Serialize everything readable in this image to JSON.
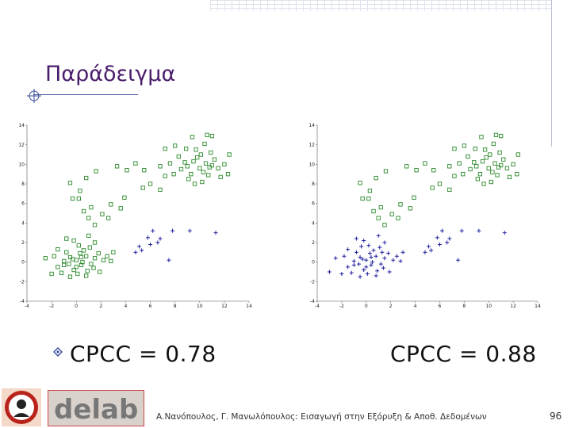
{
  "slide": {
    "title": "Παράδειγμα",
    "footer": "Α.Νανόπουλος, Γ. Μανωλόπουλος: Εισαγωγή στην Εξόρυξη & Αποθ. Δεδομένων",
    "page_number": "96",
    "logo_text": "delab"
  },
  "results": [
    {
      "label": "CPCC = 0.78"
    },
    {
      "label": "CPCC = 0.88"
    }
  ],
  "chart_data": [
    {
      "type": "scatter",
      "title": "",
      "xlabel": "",
      "ylabel": "",
      "xlim": [
        -4,
        14
      ],
      "ylim": [
        -4,
        14
      ],
      "xticks": [
        "-4",
        "-2",
        "0",
        "2",
        "4",
        "6",
        "8",
        "10",
        "12",
        "14"
      ],
      "yticks": [
        "-4",
        "-2",
        "0",
        "2",
        "4",
        "6",
        "8",
        "10",
        "12",
        "14"
      ],
      "grid": false,
      "series": [
        {
          "marker": "square",
          "color": "#2a8a2a",
          "points": [
            [
              0.0,
              0.2
            ],
            [
              -0.5,
              0.5
            ],
            [
              0.4,
              -0.3
            ],
            [
              0.8,
              0.6
            ],
            [
              -1.0,
              0.1
            ],
            [
              1.2,
              -0.2
            ],
            [
              0.3,
              0.9
            ],
            [
              -0.2,
              -0.8
            ],
            [
              0.6,
              1.2
            ],
            [
              -1.5,
              -0.5
            ],
            [
              1.5,
              0.4
            ],
            [
              0.1,
              -1.2
            ],
            [
              -0.8,
              1.0
            ],
            [
              0.9,
              -0.9
            ],
            [
              1.8,
              0.9
            ],
            [
              -1.8,
              0.6
            ],
            [
              0.5,
              0.0
            ],
            [
              -0.3,
              0.3
            ],
            [
              1.1,
              1.5
            ],
            [
              -1.2,
              -1.1
            ],
            [
              2.2,
              0.2
            ],
            [
              0.2,
              1.7
            ],
            [
              -0.6,
              -0.2
            ],
            [
              1.4,
              -0.6
            ],
            [
              -1.5,
              1.3
            ],
            [
              1.5,
              2.0
            ],
            [
              2.5,
              0.6
            ],
            [
              -0.2,
              2.2
            ],
            [
              -2.5,
              0.4
            ],
            [
              3.0,
              1.0
            ],
            [
              -0.5,
              -1.5
            ],
            [
              -2.0,
              -1.2
            ],
            [
              0.8,
              -1.4
            ],
            [
              1.9,
              -1.0
            ],
            [
              -1.0,
              -0.3
            ],
            [
              0.4,
              0.5
            ],
            [
              2.8,
              0.1
            ],
            [
              1.0,
              2.7
            ],
            [
              -0.8,
              2.4
            ],
            [
              0.0,
              -0.5
            ]
          ]
        },
        {
          "marker": "square",
          "color": "#2a8a2a",
          "points": [
            [
              9.0,
              9.8
            ],
            [
              9.5,
              10.3
            ],
            [
              10.0,
              9.6
            ],
            [
              10.5,
              10.1
            ],
            [
              11.0,
              9.9
            ],
            [
              9.8,
              10.7
            ],
            [
              10.3,
              9.2
            ],
            [
              8.8,
              10.2
            ],
            [
              11.2,
              10.5
            ],
            [
              10.7,
              8.9
            ],
            [
              9.3,
              9.0
            ],
            [
              10.1,
              11.0
            ],
            [
              8.5,
              9.5
            ],
            [
              11.5,
              9.6
            ],
            [
              9.7,
              11.5
            ],
            [
              10.9,
              11.2
            ],
            [
              8.3,
              10.8
            ],
            [
              12.0,
              10.0
            ],
            [
              9.1,
              8.5
            ],
            [
              10.4,
              12.1
            ],
            [
              7.6,
              10.1
            ],
            [
              11.7,
              8.7
            ],
            [
              8.0,
              11.9
            ],
            [
              10.6,
              13.0
            ],
            [
              9.4,
              12.8
            ],
            [
              12.3,
              9.0
            ],
            [
              7.9,
              9.0
            ],
            [
              11.0,
              12.9
            ],
            [
              8.9,
              11.6
            ],
            [
              10.2,
              8.2
            ],
            [
              6.8,
              9.8
            ],
            [
              9.6,
              8.0
            ],
            [
              12.4,
              11.0
            ],
            [
              7.2,
              11.6
            ],
            [
              10.8,
              9.7
            ]
          ]
        },
        {
          "marker": "square",
          "color": "#2a8a2a",
          "points": [
            [
              -0.3,
              6.5
            ],
            [
              0.8,
              8.6
            ],
            [
              1.6,
              9.3
            ],
            [
              0.6,
              5.2
            ],
            [
              3.3,
              9.8
            ],
            [
              5.5,
              9.4
            ],
            [
              6.8,
              7.4
            ],
            [
              7.2,
              8.8
            ],
            [
              2.6,
              4.5
            ],
            [
              0.2,
              6.5
            ],
            [
              1.5,
              3.8
            ],
            [
              3.6,
              5.5
            ],
            [
              1.0,
              4.5
            ],
            [
              4.8,
              10.1
            ],
            [
              2.8,
              5.9
            ],
            [
              1.2,
              5.6
            ],
            [
              6.0,
              8.0
            ],
            [
              -0.5,
              8.1
            ],
            [
              4.1,
              9.4
            ],
            [
              3.9,
              6.6
            ],
            [
              2.1,
              4.9
            ],
            [
              0.3,
              7.3
            ],
            [
              5.4,
              7.6
            ]
          ]
        },
        {
          "marker": "cross",
          "color": "#2020a0",
          "points": [
            [
              6.2,
              3.2
            ],
            [
              7.8,
              3.2
            ],
            [
              5.8,
              2.5
            ],
            [
              6.8,
              2.4
            ],
            [
              9.2,
              3.2
            ],
            [
              6.0,
              1.8
            ],
            [
              5.3,
              1.2
            ],
            [
              4.8,
              1.0
            ],
            [
              7.5,
              0.2
            ],
            [
              6.6,
              2.0
            ],
            [
              11.3,
              3.0
            ],
            [
              5.1,
              1.6
            ]
          ]
        }
      ]
    },
    {
      "type": "scatter",
      "title": "",
      "xlabel": "",
      "ylabel": "",
      "xlim": [
        -4,
        14
      ],
      "ylim": [
        -4,
        14
      ],
      "xticks": [
        "-4",
        "-2",
        "0",
        "2",
        "4",
        "6",
        "8",
        "10",
        "12",
        "14"
      ],
      "yticks": [
        "-4",
        "-2",
        "0",
        "2",
        "4",
        "6",
        "8",
        "10",
        "12",
        "14"
      ],
      "grid": false,
      "series": [
        {
          "marker": "cross",
          "color": "#2020a0",
          "points": [
            [
              0.0,
              0.2
            ],
            [
              -0.5,
              0.5
            ],
            [
              0.4,
              -0.3
            ],
            [
              0.8,
              0.6
            ],
            [
              -1.0,
              0.1
            ],
            [
              1.2,
              -0.2
            ],
            [
              0.3,
              0.9
            ],
            [
              -0.2,
              -0.8
            ],
            [
              0.6,
              1.2
            ],
            [
              -1.5,
              -0.5
            ],
            [
              1.5,
              0.4
            ],
            [
              0.1,
              -1.2
            ],
            [
              -0.8,
              1.0
            ],
            [
              0.9,
              -0.9
            ],
            [
              1.8,
              0.9
            ],
            [
              -1.8,
              0.6
            ],
            [
              0.5,
              0.0
            ],
            [
              -0.3,
              0.3
            ],
            [
              1.1,
              1.5
            ],
            [
              -1.2,
              -1.1
            ],
            [
              2.2,
              0.2
            ],
            [
              0.2,
              1.7
            ],
            [
              -0.6,
              -0.2
            ],
            [
              1.4,
              -0.6
            ],
            [
              -1.5,
              1.3
            ],
            [
              1.5,
              2.0
            ],
            [
              2.5,
              0.6
            ],
            [
              -0.2,
              2.2
            ],
            [
              -2.5,
              0.4
            ],
            [
              3.0,
              1.0
            ],
            [
              -0.5,
              -1.5
            ],
            [
              -2.0,
              -1.2
            ],
            [
              0.8,
              -1.4
            ],
            [
              1.9,
              -1.0
            ],
            [
              -1.0,
              -0.3
            ],
            [
              0.4,
              0.5
            ],
            [
              2.8,
              0.1
            ],
            [
              1.0,
              2.7
            ],
            [
              -0.8,
              2.4
            ],
            [
              0.0,
              -0.5
            ],
            [
              -3.0,
              -1.0
            ],
            [
              1.3,
              1.0
            ],
            [
              -0.4,
              1.6
            ]
          ]
        },
        {
          "marker": "square",
          "color": "#2a8a2a",
          "points": [
            [
              9.0,
              9.8
            ],
            [
              9.5,
              10.3
            ],
            [
              10.0,
              9.6
            ],
            [
              10.5,
              10.1
            ],
            [
              11.0,
              9.9
            ],
            [
              9.8,
              10.7
            ],
            [
              10.3,
              9.2
            ],
            [
              8.8,
              10.2
            ],
            [
              11.2,
              10.5
            ],
            [
              10.7,
              8.9
            ],
            [
              9.3,
              9.0
            ],
            [
              10.1,
              11.0
            ],
            [
              8.5,
              9.5
            ],
            [
              11.5,
              9.6
            ],
            [
              9.7,
              11.5
            ],
            [
              10.9,
              11.2
            ],
            [
              8.3,
              10.8
            ],
            [
              12.0,
              10.0
            ],
            [
              9.1,
              8.5
            ],
            [
              10.4,
              12.1
            ],
            [
              7.6,
              10.1
            ],
            [
              11.7,
              8.7
            ],
            [
              8.0,
              11.9
            ],
            [
              10.6,
              13.0
            ],
            [
              9.4,
              12.8
            ],
            [
              12.3,
              9.0
            ],
            [
              7.9,
              9.0
            ],
            [
              11.0,
              12.9
            ],
            [
              8.9,
              11.6
            ],
            [
              10.2,
              8.2
            ],
            [
              6.8,
              9.8
            ],
            [
              9.6,
              8.0
            ],
            [
              12.4,
              11.0
            ],
            [
              7.2,
              11.6
            ],
            [
              10.8,
              9.7
            ]
          ]
        },
        {
          "marker": "square",
          "color": "#2a8a2a",
          "points": [
            [
              -0.3,
              6.5
            ],
            [
              0.8,
              8.6
            ],
            [
              1.6,
              9.3
            ],
            [
              0.6,
              5.2
            ],
            [
              3.3,
              9.8
            ],
            [
              5.5,
              9.4
            ],
            [
              6.8,
              7.4
            ],
            [
              7.2,
              8.8
            ],
            [
              2.6,
              4.5
            ],
            [
              0.2,
              6.5
            ],
            [
              1.5,
              3.8
            ],
            [
              3.6,
              5.5
            ],
            [
              1.0,
              4.5
            ],
            [
              4.8,
              10.1
            ],
            [
              2.8,
              5.9
            ],
            [
              1.2,
              5.6
            ],
            [
              6.0,
              8.0
            ],
            [
              -0.5,
              8.1
            ],
            [
              4.1,
              9.4
            ],
            [
              3.9,
              6.6
            ],
            [
              2.1,
              4.9
            ],
            [
              0.3,
              7.3
            ],
            [
              5.4,
              7.6
            ]
          ]
        },
        {
          "marker": "cross",
          "color": "#2020a0",
          "points": [
            [
              6.2,
              3.2
            ],
            [
              7.8,
              3.2
            ],
            [
              5.8,
              2.5
            ],
            [
              6.8,
              2.4
            ],
            [
              9.2,
              3.2
            ],
            [
              6.0,
              1.8
            ],
            [
              5.3,
              1.2
            ],
            [
              4.8,
              1.0
            ],
            [
              7.5,
              0.2
            ],
            [
              6.6,
              2.0
            ],
            [
              11.3,
              3.0
            ],
            [
              5.1,
              1.6
            ]
          ]
        }
      ]
    }
  ]
}
